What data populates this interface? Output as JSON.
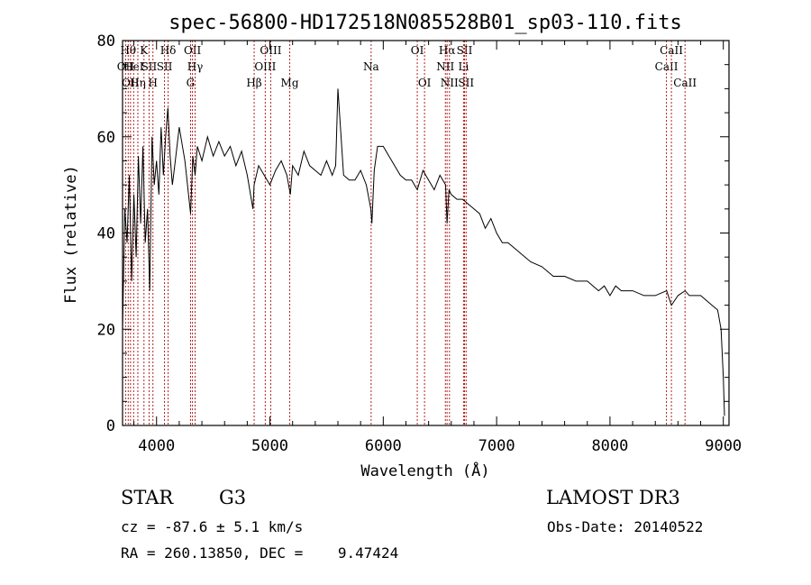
{
  "chart_data": {
    "type": "line",
    "title": "spec-56800-HD172518N085528B01_sp03-110.fits",
    "xlabel": "Wavelength (Å)",
    "ylabel": "Flux (relative)",
    "xlim": [
      3700,
      9050
    ],
    "ylim": [
      0,
      80
    ],
    "xticks": [
      4000,
      5000,
      6000,
      7000,
      8000,
      9000
    ],
    "yticks": [
      0,
      20,
      40,
      60,
      80
    ],
    "series": [
      {
        "name": "flux",
        "x": [
          3700,
          3720,
          3740,
          3760,
          3780,
          3800,
          3820,
          3840,
          3860,
          3880,
          3900,
          3920,
          3940,
          3960,
          3980,
          4000,
          4020,
          4040,
          4060,
          4080,
          4100,
          4120,
          4140,
          4160,
          4180,
          4200,
          4250,
          4300,
          4320,
          4340,
          4360,
          4400,
          4450,
          4500,
          4550,
          4600,
          4650,
          4700,
          4750,
          4800,
          4850,
          4861,
          4900,
          4950,
          5000,
          5050,
          5100,
          5150,
          5180,
          5200,
          5250,
          5300,
          5350,
          5400,
          5450,
          5500,
          5550,
          5580,
          5600,
          5650,
          5700,
          5750,
          5800,
          5850,
          5890,
          5900,
          5920,
          5950,
          6000,
          6050,
          6100,
          6150,
          6200,
          6250,
          6300,
          6350,
          6400,
          6450,
          6500,
          6550,
          6563,
          6580,
          6600,
          6650,
          6700,
          6750,
          6800,
          6850,
          6900,
          6950,
          7000,
          7050,
          7100,
          7150,
          7200,
          7300,
          7400,
          7500,
          7600,
          7700,
          7800,
          7900,
          7950,
          8000,
          8050,
          8100,
          8200,
          8300,
          8400,
          8500,
          8542,
          8600,
          8662,
          8700,
          8800,
          8900,
          8950,
          8980,
          9000,
          9010
        ],
        "values": [
          20,
          45,
          38,
          52,
          30,
          48,
          35,
          56,
          42,
          58,
          38,
          45,
          28,
          60,
          50,
          55,
          48,
          62,
          52,
          60,
          66,
          56,
          50,
          54,
          58,
          62,
          55,
          44,
          56,
          52,
          58,
          55,
          60,
          56,
          59,
          56,
          58,
          54,
          57,
          52,
          45,
          50,
          54,
          52,
          50,
          53,
          55,
          52,
          48,
          54,
          52,
          57,
          54,
          53,
          52,
          55,
          52,
          54,
          70,
          52,
          51,
          51,
          53,
          50,
          45,
          42,
          53,
          58,
          58,
          56,
          54,
          52,
          51,
          51,
          49,
          53,
          51,
          49,
          52,
          50,
          42,
          49,
          48,
          47,
          47,
          46,
          45,
          44,
          41,
          43,
          40,
          38,
          38,
          37,
          36,
          34,
          33,
          31,
          31,
          30,
          30,
          28,
          29,
          27,
          29,
          28,
          28,
          27,
          27,
          28,
          25,
          27,
          28,
          27,
          27,
          25,
          24,
          20,
          10,
          2
        ]
      }
    ],
    "line_markers": [
      {
        "wl": 3727,
        "label": "OII",
        "row": 2
      },
      {
        "wl": 3750,
        "label": "Hθ",
        "row": 1
      },
      {
        "wl": 3770,
        "label": "OII",
        "row": 3
      },
      {
        "wl": 3798,
        "label": "HeI",
        "row": 2
      },
      {
        "wl": 3835,
        "label": "Hη",
        "row": 3
      },
      {
        "wl": 3889,
        "label": "K",
        "row": 1
      },
      {
        "wl": 3934,
        "label": "SII",
        "row": 2
      },
      {
        "wl": 3968,
        "label": "H",
        "row": 3
      },
      {
        "wl": 4102,
        "label": "Hδ",
        "row": 1
      },
      {
        "wl": 4070,
        "label": "SII",
        "row": 2
      },
      {
        "wl": 4300,
        "label": "G",
        "row": 3
      },
      {
        "wl": 4317,
        "label": "OII",
        "row": 1
      },
      {
        "wl": 4340,
        "label": "Hγ",
        "row": 2
      },
      {
        "wl": 4861,
        "label": "Hβ",
        "row": 3
      },
      {
        "wl": 4959,
        "label": "OIII",
        "row": 2
      },
      {
        "wl": 5007,
        "label": "OIII",
        "row": 1
      },
      {
        "wl": 5175,
        "label": "Mg",
        "row": 3
      },
      {
        "wl": 5893,
        "label": "Na",
        "row": 2
      },
      {
        "wl": 6300,
        "label": "OI",
        "row": 1
      },
      {
        "wl": 6364,
        "label": "OI",
        "row": 3
      },
      {
        "wl": 6548,
        "label": "NII",
        "row": 2
      },
      {
        "wl": 6563,
        "label": "Hα",
        "row": 1
      },
      {
        "wl": 6584,
        "label": "NII",
        "row": 3
      },
      {
        "wl": 6708,
        "label": "Li",
        "row": 2
      },
      {
        "wl": 6717,
        "label": "SII",
        "row": 1
      },
      {
        "wl": 6731,
        "label": "SII",
        "row": 3
      },
      {
        "wl": 8498,
        "label": "CaII",
        "row": 2
      },
      {
        "wl": 8542,
        "label": "CaII",
        "row": 1
      },
      {
        "wl": 8662,
        "label": "CaII",
        "row": 3
      }
    ]
  },
  "info": {
    "class": "STAR",
    "subclass": "G3",
    "survey": "LAMOST DR3",
    "cz": "cz = -87.6 ± 5.1 km/s",
    "obs_date": "Obs-Date: 20140522",
    "coords": "RA = 260.13850, DEC =    9.47424"
  },
  "colors": {
    "axis": "#000000",
    "spectrum": "#000000",
    "marker": "#b22222"
  }
}
